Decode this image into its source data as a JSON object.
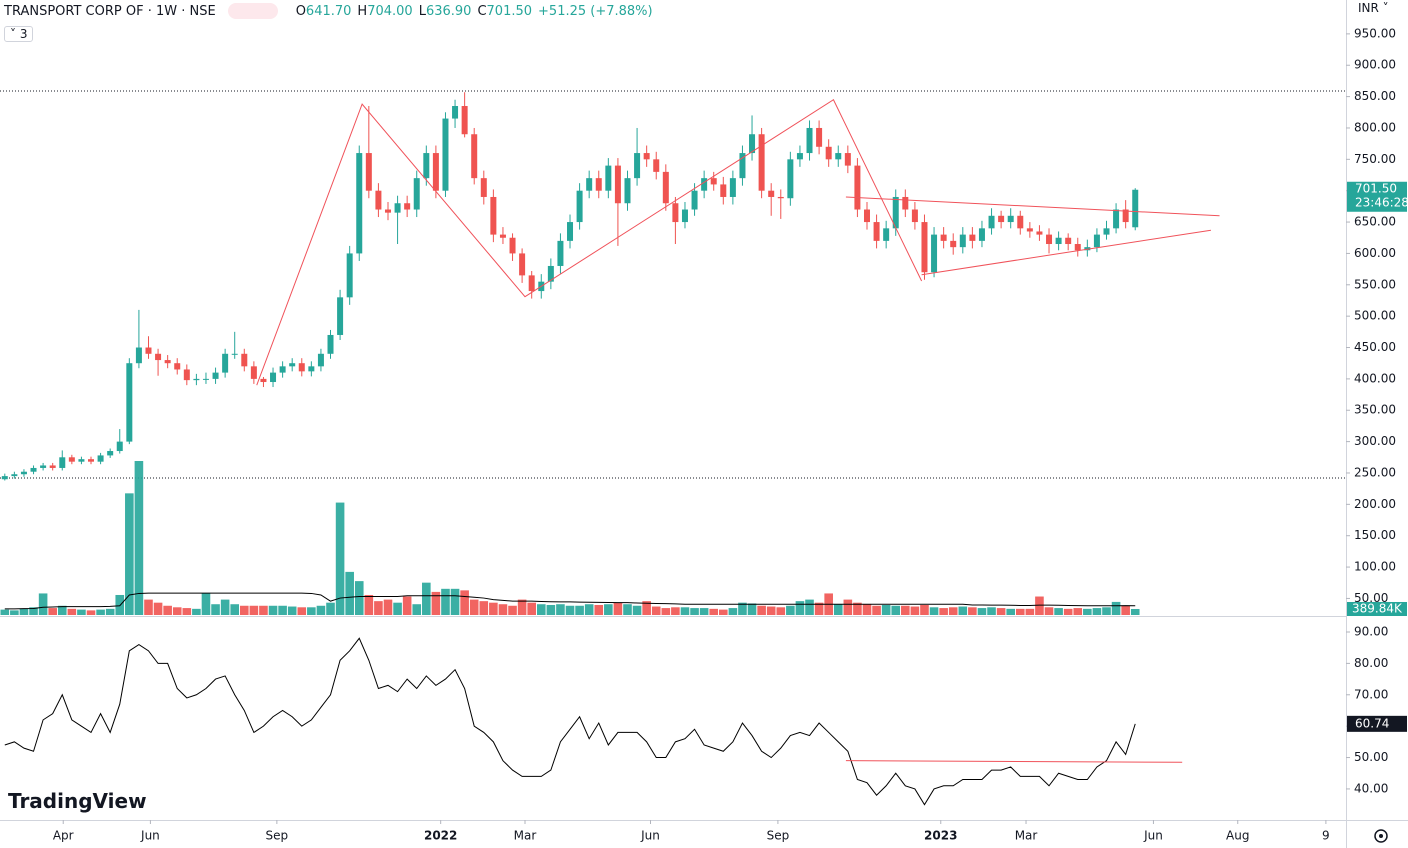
{
  "chart_data": {
    "type": "candlestick",
    "title": "TRANSPORT CORP OF · 1W · NSE",
    "ohlc_legend": [
      [
        "O",
        "641.70"
      ],
      [
        "H",
        "704.00"
      ],
      [
        "L",
        "636.90"
      ],
      [
        "C",
        "701.50"
      ]
    ],
    "change": "+51.25 (+7.88%)",
    "indicator_count": "3",
    "currency": "INR",
    "last_price": "701.50",
    "countdown": "23:46:28",
    "watermark": "TradingView",
    "up_color": "#26a69a",
    "down_color": "#ef5350",
    "drawing_color": "#f0525a",
    "xlim": [
      -0.5,
      140
    ],
    "xticks": [
      {
        "value": 6.1,
        "label": "Apr"
      },
      {
        "value": 15.2,
        "label": "Jun"
      },
      {
        "value": 28.4,
        "label": "Sep"
      },
      {
        "value": 45.5,
        "label": "2022"
      },
      {
        "value": 54.3,
        "label": "Mar"
      },
      {
        "value": 67.4,
        "label": "Jun"
      },
      {
        "value": 80.7,
        "label": "Sep"
      },
      {
        "value": 97.7,
        "label": "2023"
      },
      {
        "value": 106.6,
        "label": "Mar"
      },
      {
        "value": 119.9,
        "label": "Jun"
      },
      {
        "value": 128.7,
        "label": "Aug"
      },
      {
        "value": 137.9,
        "label": "9"
      }
    ],
    "ylim": [
      22,
      1004
    ],
    "yticks": [
      {
        "value": 950,
        "label": "950.00"
      },
      {
        "value": 900,
        "label": "900.00"
      },
      {
        "value": 850,
        "label": "850.00"
      },
      {
        "value": 800,
        "label": "800.00"
      },
      {
        "value": 750,
        "label": "750.00"
      },
      {
        "value": 700,
        "label": "700.00"
      },
      {
        "value": 650,
        "label": "650.00"
      },
      {
        "value": 600,
        "label": "600.00"
      },
      {
        "value": 550,
        "label": "550.00"
      },
      {
        "value": 500,
        "label": "500.00"
      },
      {
        "value": 450,
        "label": "450.00"
      },
      {
        "value": 400,
        "label": "400.00"
      },
      {
        "value": 350,
        "label": "350.00"
      },
      {
        "value": 300,
        "label": "300.00"
      },
      {
        "value": 250,
        "label": "250.00"
      },
      {
        "value": 200,
        "label": "200.00"
      },
      {
        "value": 150,
        "label": "150.00"
      },
      {
        "value": 100,
        "label": "100.00"
      },
      {
        "value": 50,
        "label": "50.00"
      }
    ],
    "candles": [
      [
        240,
        249,
        238,
        245
      ],
      [
        245,
        252,
        241,
        248
      ],
      [
        248,
        256,
        244,
        252
      ],
      [
        252,
        262,
        248,
        258
      ],
      [
        258,
        266,
        254,
        262
      ],
      [
        262,
        266,
        254,
        258
      ],
      [
        258,
        286,
        254,
        275
      ],
      [
        275,
        279,
        264,
        268
      ],
      [
        268,
        276,
        264,
        272
      ],
      [
        272,
        276,
        264,
        268
      ],
      [
        268,
        282,
        264,
        278
      ],
      [
        278,
        289,
        274,
        285
      ],
      [
        285,
        320,
        281,
        300
      ],
      [
        300,
        433,
        296,
        425
      ],
      [
        425,
        510,
        417,
        450
      ],
      [
        450,
        468,
        432,
        440
      ],
      [
        440,
        448,
        405,
        430
      ],
      [
        430,
        438,
        417,
        425
      ],
      [
        425,
        433,
        407,
        415
      ],
      [
        415,
        423,
        390,
        398
      ],
      [
        398,
        408,
        390,
        400
      ],
      [
        400,
        410,
        392,
        400
      ],
      [
        400,
        418,
        392,
        410
      ],
      [
        410,
        448,
        402,
        440
      ],
      [
        440,
        475,
        432,
        440
      ],
      [
        440,
        448,
        412,
        420
      ],
      [
        420,
        428,
        392,
        400
      ],
      [
        400,
        403,
        387,
        395
      ],
      [
        395,
        418,
        387,
        410
      ],
      [
        410,
        428,
        402,
        420
      ],
      [
        420,
        433,
        412,
        425
      ],
      [
        425,
        433,
        404,
        412
      ],
      [
        412,
        428,
        404,
        420
      ],
      [
        420,
        448,
        412,
        440
      ],
      [
        440,
        478,
        432,
        470
      ],
      [
        470,
        542,
        462,
        530
      ],
      [
        530,
        612,
        518,
        600
      ],
      [
        600,
        772,
        588,
        760
      ],
      [
        760,
        835,
        688,
        700
      ],
      [
        700,
        712,
        658,
        670
      ],
      [
        670,
        682,
        653,
        665
      ],
      [
        665,
        692,
        615,
        680
      ],
      [
        680,
        692,
        658,
        670
      ],
      [
        670,
        732,
        658,
        720
      ],
      [
        720,
        772,
        708,
        760
      ],
      [
        760,
        772,
        688,
        700
      ],
      [
        700,
        825,
        690,
        815
      ],
      [
        815,
        845,
        800,
        835
      ],
      [
        835,
        857,
        785,
        790
      ],
      [
        790,
        800,
        710,
        720
      ],
      [
        720,
        732,
        678,
        690
      ],
      [
        690,
        702,
        618,
        630
      ],
      [
        630,
        642,
        615,
        625
      ],
      [
        625,
        632,
        588,
        600
      ],
      [
        600,
        608,
        553,
        565
      ],
      [
        565,
        572,
        528,
        540
      ],
      [
        540,
        567,
        528,
        555
      ],
      [
        555,
        592,
        543,
        580
      ],
      [
        580,
        632,
        568,
        620
      ],
      [
        620,
        662,
        608,
        650
      ],
      [
        650,
        712,
        638,
        700
      ],
      [
        700,
        732,
        688,
        720
      ],
      [
        720,
        732,
        688,
        700
      ],
      [
        700,
        752,
        688,
        740
      ],
      [
        740,
        752,
        612,
        680
      ],
      [
        680,
        732,
        668,
        720
      ],
      [
        720,
        800,
        708,
        760
      ],
      [
        760,
        772,
        738,
        750
      ],
      [
        750,
        762,
        718,
        730
      ],
      [
        730,
        742,
        668,
        680
      ],
      [
        680,
        690,
        615,
        650
      ],
      [
        650,
        682,
        640,
        670
      ],
      [
        670,
        712,
        660,
        700
      ],
      [
        700,
        732,
        688,
        720
      ],
      [
        720,
        730,
        700,
        710
      ],
      [
        710,
        722,
        678,
        690
      ],
      [
        690,
        732,
        678,
        720
      ],
      [
        720,
        772,
        708,
        760
      ],
      [
        760,
        820,
        748,
        790
      ],
      [
        790,
        800,
        688,
        700
      ],
      [
        700,
        712,
        660,
        690
      ],
      [
        690,
        702,
        655,
        688
      ],
      [
        688,
        762,
        676,
        750
      ],
      [
        750,
        772,
        738,
        760
      ],
      [
        760,
        812,
        748,
        800
      ],
      [
        800,
        812,
        758,
        770
      ],
      [
        770,
        782,
        738,
        750
      ],
      [
        750,
        772,
        738,
        760
      ],
      [
        760,
        772,
        728,
        740
      ],
      [
        740,
        752,
        658,
        670
      ],
      [
        670,
        682,
        638,
        650
      ],
      [
        650,
        662,
        608,
        620
      ],
      [
        620,
        652,
        608,
        640
      ],
      [
        640,
        702,
        628,
        690
      ],
      [
        690,
        702,
        658,
        670
      ],
      [
        670,
        682,
        638,
        650
      ],
      [
        650,
        662,
        558,
        570
      ],
      [
        570,
        642,
        562,
        630
      ],
      [
        630,
        642,
        608,
        620
      ],
      [
        620,
        632,
        598,
        610
      ],
      [
        610,
        642,
        600,
        630
      ],
      [
        630,
        642,
        608,
        620
      ],
      [
        620,
        652,
        610,
        640
      ],
      [
        640,
        672,
        630,
        660
      ],
      [
        660,
        668,
        640,
        650
      ],
      [
        650,
        672,
        640,
        660
      ],
      [
        660,
        668,
        630,
        640
      ],
      [
        640,
        650,
        625,
        635
      ],
      [
        635,
        645,
        620,
        630
      ],
      [
        630,
        640,
        600,
        615
      ],
      [
        615,
        635,
        605,
        625
      ],
      [
        625,
        632,
        605,
        615
      ],
      [
        615,
        625,
        595,
        605
      ],
      [
        605,
        622,
        595,
        610
      ],
      [
        610,
        640,
        602,
        630
      ],
      [
        630,
        652,
        622,
        640
      ],
      [
        640,
        680,
        632,
        670
      ],
      [
        670,
        685,
        640,
        650
      ],
      [
        641.7,
        704,
        636.9,
        701.5
      ]
    ],
    "hlines": [
      859,
      242
    ],
    "zigzag": {
      "x": [
        26.3,
        37.3,
        54.3,
        86.5,
        95.7
      ],
      "y": [
        390,
        838,
        531,
        845,
        556
      ]
    },
    "triangle_upper": {
      "x": [
        87.8,
        126.8
      ],
      "y": [
        690,
        660
      ]
    },
    "triangle_lower": {
      "x": [
        95.7,
        125.9
      ],
      "y": [
        566,
        637
      ]
    },
    "volume": {
      "ylim": [
        0,
        25000
      ],
      "last_value_label": "389.84K",
      "ma_color": "#000000",
      "values": [
        350,
        300,
        400,
        500,
        1400,
        450,
        600,
        400,
        350,
        300,
        350,
        400,
        1300,
        7900,
        10000,
        1000,
        800,
        600,
        500,
        450,
        400,
        1400,
        700,
        1000,
        700,
        600,
        600,
        600,
        600,
        600,
        550,
        500,
        500,
        600,
        800,
        7300,
        2800,
        2200,
        1300,
        900,
        1000,
        800,
        1200,
        700,
        2100,
        1500,
        1700,
        1700,
        1600,
        1000,
        900,
        800,
        700,
        600,
        1000,
        800,
        700,
        650,
        700,
        600,
        600,
        700,
        650,
        700,
        800,
        700,
        600,
        900,
        550,
        450,
        500,
        500,
        450,
        450,
        400,
        350,
        450,
        800,
        750,
        600,
        550,
        500,
        600,
        900,
        1000,
        800,
        1400,
        700,
        1000,
        800,
        700,
        600,
        650,
        600,
        600,
        550,
        650,
        500,
        450,
        500,
        550,
        500,
        450,
        500,
        450,
        400,
        400,
        400,
        1200,
        500,
        450,
        400,
        450,
        400,
        450,
        500,
        850,
        600,
        389.84
      ],
      "ma": [
        400,
        400,
        410,
        420,
        500,
        520,
        540,
        540,
        540,
        540,
        540,
        560,
        600,
        1300,
        1400,
        1420,
        1420,
        1420,
        1420,
        1420,
        1420,
        1420,
        1420,
        1420,
        1420,
        1420,
        1420,
        1420,
        1420,
        1420,
        1420,
        1420,
        1400,
        1300,
        900,
        1100,
        1150,
        1200,
        1200,
        1200,
        1200,
        1200,
        1250,
        1250,
        1250,
        1250,
        1250,
        1250,
        1200,
        1150,
        1100,
        1000,
        950,
        900,
        900,
        900,
        880,
        860,
        850,
        850,
        840,
        830,
        820,
        810,
        800,
        800,
        780,
        760,
        750,
        740,
        720,
        700,
        700,
        700,
        700,
        700,
        700,
        700,
        700,
        700,
        700,
        700,
        700,
        700,
        700,
        700,
        700,
        700,
        700,
        700,
        700,
        700,
        700,
        700,
        700,
        700,
        700,
        700,
        700,
        700,
        700,
        650,
        650,
        640,
        640,
        630,
        620,
        620,
        640,
        640,
        630,
        620,
        610,
        600,
        600,
        600,
        600,
        610,
        600
      ]
    },
    "rsi": {
      "ylim": [
        30.1,
        95.1
      ],
      "color": "#000000",
      "yticks": [
        {
          "value": 90,
          "label": "90.00"
        },
        {
          "value": 80,
          "label": "80.00"
        },
        {
          "value": 70,
          "label": "70.00"
        },
        {
          "value": 60,
          "label": "60.00"
        },
        {
          "value": 50,
          "label": "50.00"
        },
        {
          "value": 40,
          "label": "40.00"
        }
      ],
      "values": [
        54,
        55,
        53,
        52,
        62,
        64,
        70,
        62,
        60,
        58,
        64,
        58,
        67,
        84,
        86,
        84,
        80,
        80,
        72,
        69,
        70,
        72,
        75,
        76,
        70,
        65,
        58,
        60,
        63,
        65,
        63,
        60,
        62,
        66,
        70,
        81,
        84,
        88,
        81,
        72,
        73,
        71,
        75,
        72,
        76,
        73,
        75,
        78,
        72,
        60,
        58,
        55,
        49,
        46,
        44,
        44,
        44,
        46,
        55,
        59,
        63,
        56,
        61,
        54,
        58,
        58,
        58,
        55,
        50,
        50,
        55,
        56,
        59,
        54,
        53,
        52,
        55,
        61,
        57,
        52,
        50,
        53,
        57,
        58,
        57,
        61,
        58,
        55,
        52,
        43,
        42,
        38,
        41,
        45,
        41,
        40,
        35,
        40,
        41,
        41,
        43,
        43,
        43,
        46,
        46,
        47,
        44,
        44,
        44,
        41,
        45,
        44,
        43,
        43,
        47,
        49,
        55,
        51,
        60.74
      ],
      "level_line": {
        "x": [
          87.8,
          122.9
        ],
        "y": [
          49,
          48.5
        ]
      }
    }
  }
}
